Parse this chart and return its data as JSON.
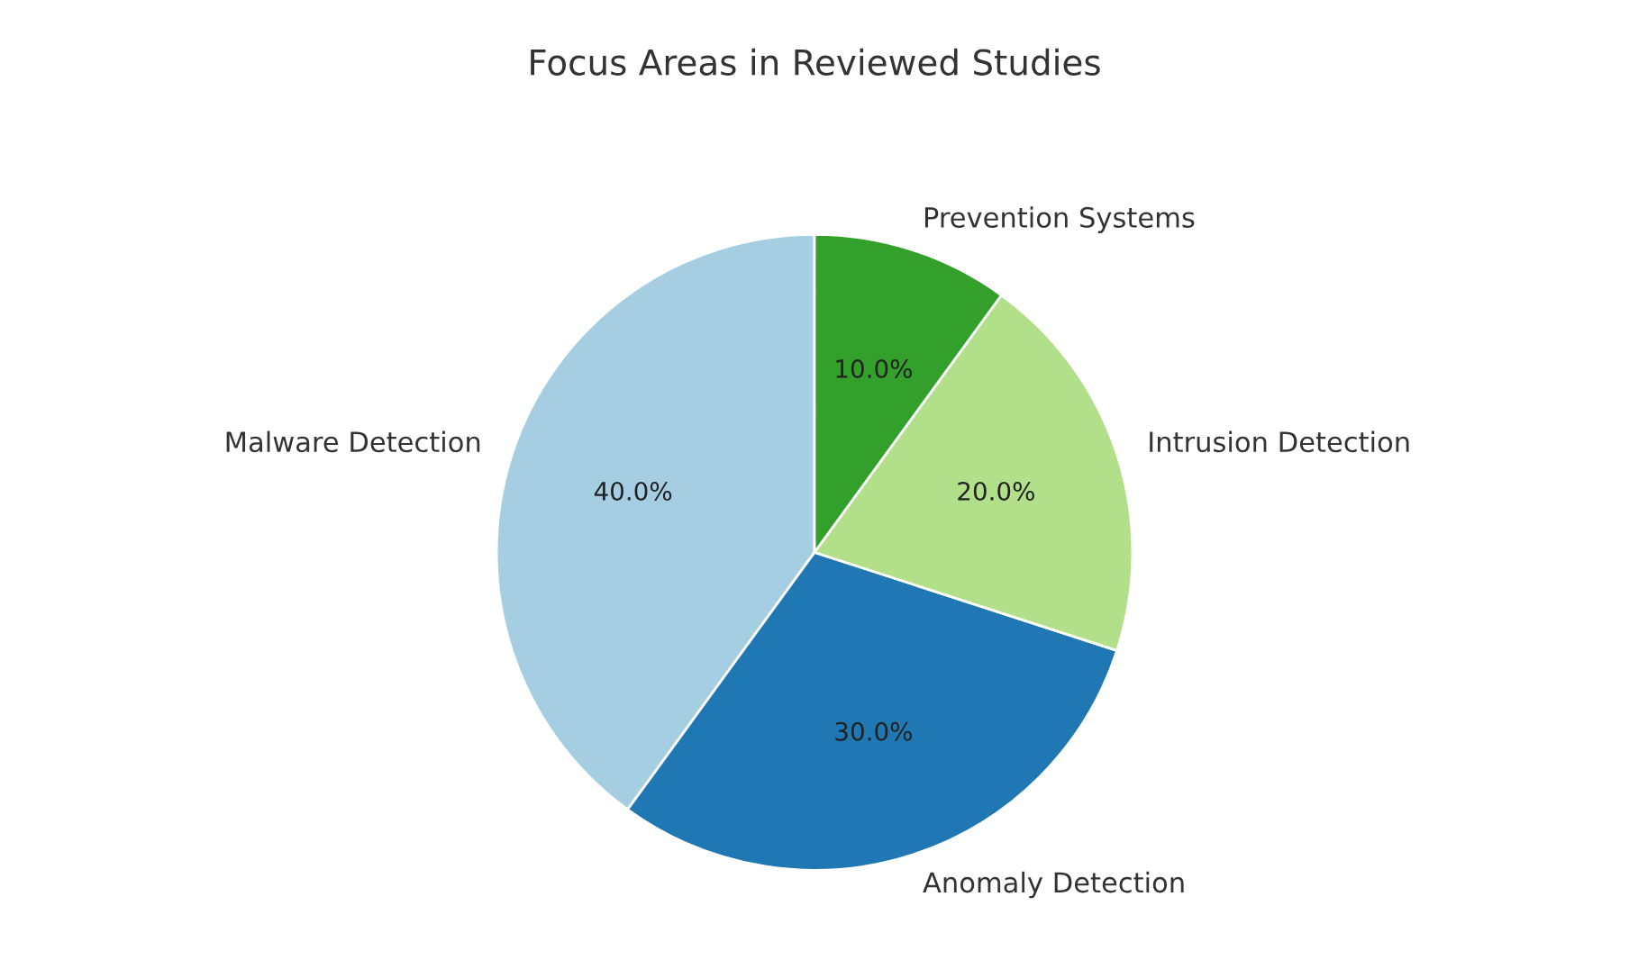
{
  "chart_data": {
    "type": "pie",
    "title": "Focus Areas in Reviewed Studies",
    "categories": [
      "Malware Detection",
      "Anomaly Detection",
      "Intrusion Detection",
      "Prevention Systems"
    ],
    "values": [
      40,
      30,
      20,
      10
    ],
    "colors": [
      "#a6cee3",
      "#1f78b4",
      "#b2df8a",
      "#33a02c"
    ],
    "value_labels": [
      "40.0%",
      "30.0%",
      "20.0%",
      "10.0%"
    ]
  }
}
